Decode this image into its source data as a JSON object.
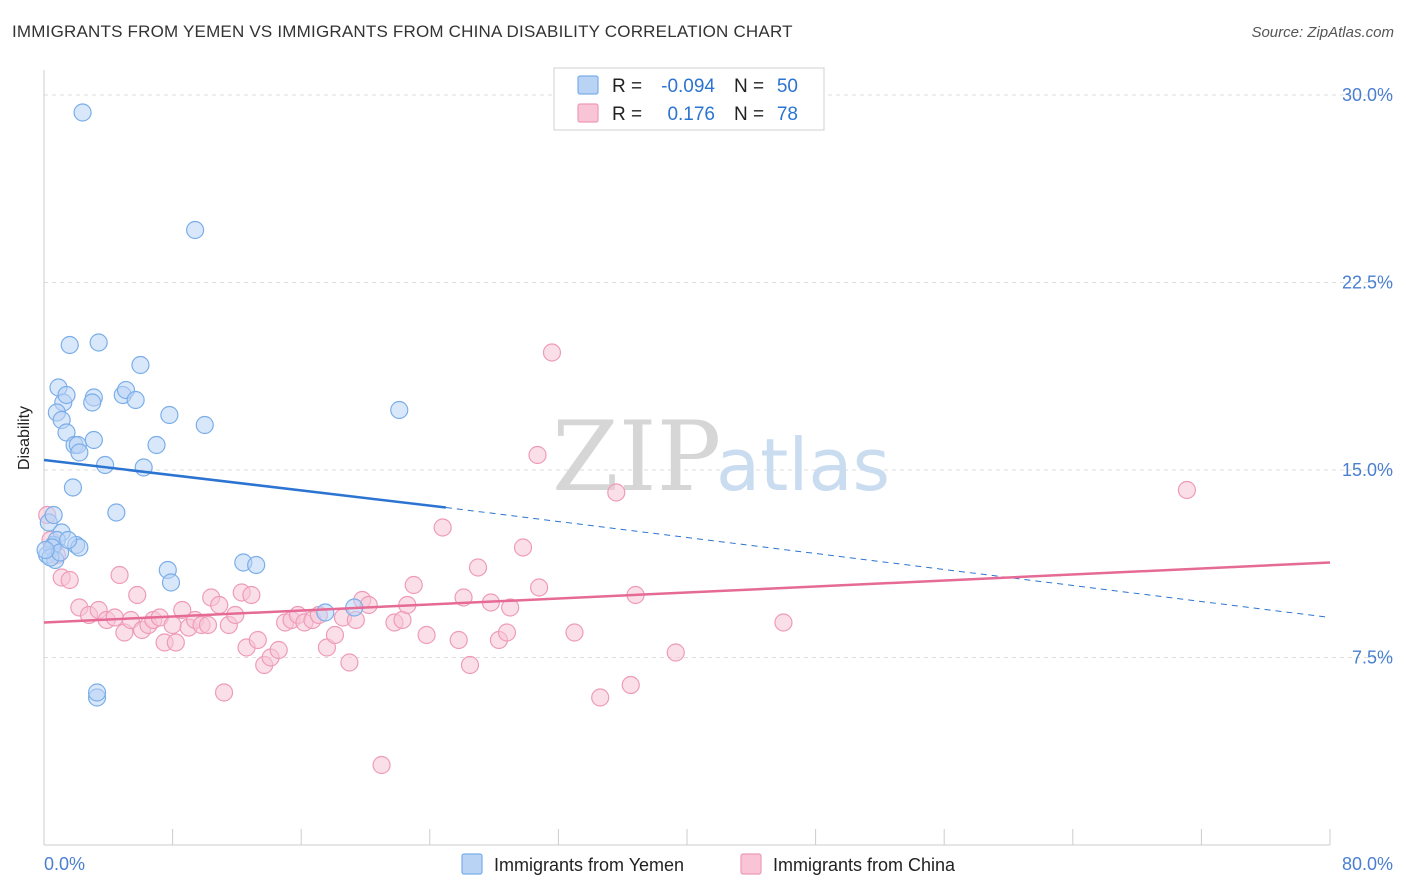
{
  "title": "IMMIGRANTS FROM YEMEN VS IMMIGRANTS FROM CHINA DISABILITY CORRELATION CHART",
  "source": "Source: ZipAtlas.com",
  "watermark": {
    "zip": "ZIP",
    "atlas": "atlas"
  },
  "legend_box": {
    "rows": [
      {
        "r_label": "R =",
        "r_value": "-0.094",
        "n_label": "N =",
        "n_value": "50",
        "color": "#7aaee8"
      },
      {
        "r_label": "R =",
        "r_value": "0.176",
        "n_label": "N =",
        "n_value": "78",
        "color": "#f2a0bd"
      }
    ]
  },
  "colors": {
    "yemen_fill": "#b9d3f5",
    "yemen_stroke": "#7aaee8",
    "yemen_line": "#2c74d1",
    "china_fill": "#f8c4d6",
    "china_stroke": "#ee9bb8",
    "china_line": "#e56a95",
    "tick_label": "#4a7fd0",
    "grid": "#dddddd"
  },
  "chart_data": {
    "type": "scatter",
    "title": "IMMIGRANTS FROM YEMEN VS IMMIGRANTS FROM CHINA DISABILITY CORRELATION CHART",
    "xlabel": "",
    "ylabel": "Disability",
    "xlim": [
      0,
      80
    ],
    "ylim": [
      0,
      31
    ],
    "x_tick_labels": [
      "0.0%",
      "80.0%"
    ],
    "y_ticks": [
      7.5,
      15.0,
      22.5,
      30.0
    ],
    "y_tick_labels": [
      "7.5%",
      "15.0%",
      "22.5%",
      "30.0%"
    ],
    "x_minor_ticks": [
      8,
      16,
      24,
      32,
      40,
      48,
      56,
      64,
      72,
      80
    ],
    "grid": true,
    "series": [
      {
        "name": "Immigrants from Yemen",
        "r": -0.094,
        "n": 50,
        "trend": {
          "x0": 0,
          "y0": 15.4,
          "x1": 25,
          "y1": 13.5,
          "dash_to_x": 80,
          "dash_to_y": 9.1
        },
        "points": [
          [
            2.4,
            29.3
          ],
          [
            9.4,
            24.6
          ],
          [
            1.6,
            20.0
          ],
          [
            3.4,
            20.1
          ],
          [
            6.0,
            19.2
          ],
          [
            0.9,
            18.3
          ],
          [
            1.2,
            17.7
          ],
          [
            1.4,
            18.0
          ],
          [
            3.1,
            17.9
          ],
          [
            4.9,
            18.0
          ],
          [
            5.1,
            18.2
          ],
          [
            3.0,
            17.7
          ],
          [
            5.7,
            17.8
          ],
          [
            0.8,
            17.3
          ],
          [
            7.8,
            17.2
          ],
          [
            22.1,
            17.4
          ],
          [
            1.1,
            17.0
          ],
          [
            1.4,
            16.5
          ],
          [
            10.0,
            16.8
          ],
          [
            1.9,
            16.0
          ],
          [
            2.1,
            16.0
          ],
          [
            3.1,
            16.2
          ],
          [
            7.0,
            16.0
          ],
          [
            2.2,
            15.7
          ],
          [
            3.8,
            15.2
          ],
          [
            6.2,
            15.1
          ],
          [
            1.8,
            14.3
          ],
          [
            0.3,
            12.9
          ],
          [
            0.6,
            13.2
          ],
          [
            4.5,
            13.3
          ],
          [
            1.1,
            12.5
          ],
          [
            0.6,
            12.0
          ],
          [
            0.8,
            12.2
          ],
          [
            2.0,
            12.0
          ],
          [
            2.2,
            11.9
          ],
          [
            0.2,
            11.6
          ],
          [
            0.5,
            11.9
          ],
          [
            0.7,
            11.4
          ],
          [
            12.4,
            11.3
          ],
          [
            13.2,
            11.2
          ],
          [
            7.7,
            11.0
          ],
          [
            7.9,
            10.5
          ],
          [
            17.5,
            9.3
          ],
          [
            19.3,
            9.5
          ],
          [
            0.4,
            11.5
          ],
          [
            1.0,
            11.7
          ],
          [
            3.3,
            5.9
          ],
          [
            3.3,
            6.1
          ],
          [
            0.1,
            11.8
          ],
          [
            1.5,
            12.2
          ]
        ]
      },
      {
        "name": "Immigrants from China",
        "r": 0.176,
        "n": 78,
        "trend": {
          "x0": 0,
          "y0": 8.9,
          "x1": 80,
          "y1": 11.3
        },
        "points": [
          [
            0.2,
            13.2
          ],
          [
            0.4,
            12.2
          ],
          [
            0.8,
            11.6
          ],
          [
            1.1,
            10.7
          ],
          [
            1.6,
            10.6
          ],
          [
            2.2,
            9.5
          ],
          [
            2.8,
            9.2
          ],
          [
            3.4,
            9.4
          ],
          [
            3.9,
            9.0
          ],
          [
            4.4,
            9.1
          ],
          [
            4.7,
            10.8
          ],
          [
            5.0,
            8.5
          ],
          [
            5.4,
            9.0
          ],
          [
            5.8,
            10.0
          ],
          [
            6.1,
            8.6
          ],
          [
            6.5,
            8.8
          ],
          [
            6.8,
            9.0
          ],
          [
            7.2,
            9.1
          ],
          [
            7.5,
            8.1
          ],
          [
            8.0,
            8.8
          ],
          [
            8.2,
            8.1
          ],
          [
            8.6,
            9.4
          ],
          [
            9.0,
            8.7
          ],
          [
            9.4,
            9.0
          ],
          [
            9.8,
            8.8
          ],
          [
            10.2,
            8.8
          ],
          [
            10.4,
            9.9
          ],
          [
            10.9,
            9.6
          ],
          [
            11.2,
            6.1
          ],
          [
            11.5,
            8.8
          ],
          [
            11.9,
            9.2
          ],
          [
            12.3,
            10.1
          ],
          [
            12.6,
            7.9
          ],
          [
            12.9,
            10.0
          ],
          [
            13.3,
            8.2
          ],
          [
            13.7,
            7.2
          ],
          [
            14.1,
            7.5
          ],
          [
            14.6,
            7.8
          ],
          [
            15.0,
            8.9
          ],
          [
            15.4,
            9.0
          ],
          [
            15.8,
            9.2
          ],
          [
            16.2,
            8.9
          ],
          [
            16.7,
            9.0
          ],
          [
            17.1,
            9.2
          ],
          [
            17.6,
            7.9
          ],
          [
            18.1,
            8.4
          ],
          [
            18.6,
            9.1
          ],
          [
            19.0,
            7.3
          ],
          [
            19.4,
            9.0
          ],
          [
            19.8,
            9.8
          ],
          [
            20.2,
            9.6
          ],
          [
            21.0,
            3.2
          ],
          [
            21.8,
            8.9
          ],
          [
            22.3,
            9.0
          ],
          [
            22.6,
            9.6
          ],
          [
            23.0,
            10.4
          ],
          [
            23.8,
            8.4
          ],
          [
            24.8,
            12.7
          ],
          [
            25.8,
            8.2
          ],
          [
            26.1,
            9.9
          ],
          [
            26.5,
            7.2
          ],
          [
            27.0,
            11.1
          ],
          [
            27.8,
            9.7
          ],
          [
            28.3,
            8.2
          ],
          [
            28.8,
            8.5
          ],
          [
            29.0,
            9.5
          ],
          [
            29.8,
            11.9
          ],
          [
            30.8,
            10.3
          ],
          [
            30.7,
            15.6
          ],
          [
            31.6,
            19.7
          ],
          [
            33.0,
            8.5
          ],
          [
            34.6,
            5.9
          ],
          [
            35.6,
            14.1
          ],
          [
            36.5,
            6.4
          ],
          [
            36.8,
            10.0
          ],
          [
            39.3,
            7.7
          ],
          [
            46.0,
            8.9
          ],
          [
            71.1,
            14.2
          ]
        ]
      }
    ]
  },
  "bottom_legend": [
    {
      "label": "Immigrants from Yemen"
    },
    {
      "label": "Immigrants from China"
    }
  ]
}
